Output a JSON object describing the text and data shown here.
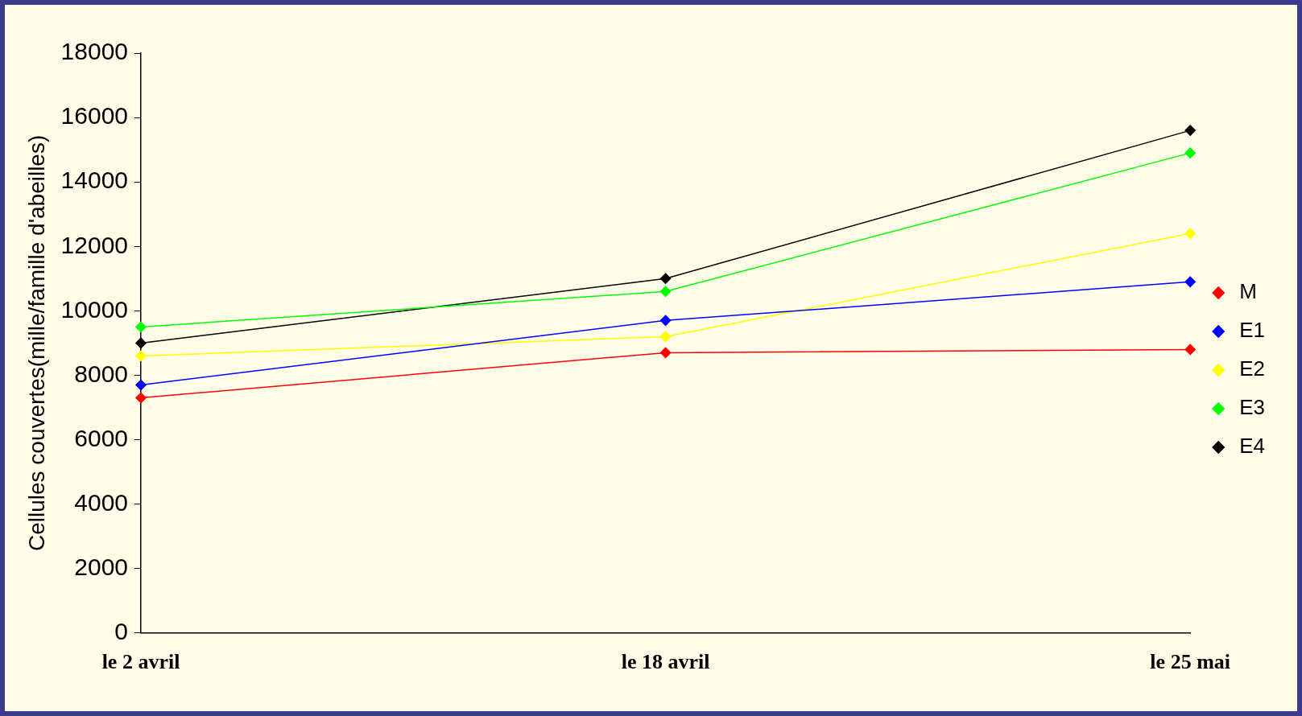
{
  "chart_data": {
    "type": "line",
    "ylabel": "Cellules couvertes(mille/famille d'abeilles)",
    "categories": [
      "le 2 avril",
      "le 18 avril",
      "le 25 mai"
    ],
    "series": [
      {
        "name": "M",
        "color": "#ff0000",
        "values": [
          7300,
          8700,
          8800
        ]
      },
      {
        "name": "E1",
        "color": "#0000ff",
        "values": [
          7700,
          9700,
          10900
        ]
      },
      {
        "name": "E2",
        "color": "#ffff00",
        "values": [
          8600,
          9200,
          12400
        ]
      },
      {
        "name": "E3",
        "color": "#00ff00",
        "values": [
          9500,
          10600,
          14900
        ]
      },
      {
        "name": "E4",
        "color": "#000000",
        "values": [
          9000,
          11000,
          15600
        ]
      }
    ],
    "ylim": [
      0,
      18000
    ],
    "yticks": [
      0,
      2000,
      4000,
      6000,
      8000,
      10000,
      12000,
      14000,
      16000,
      18000
    ],
    "grid": false,
    "legend": "right",
    "marker": "diamond",
    "line_style": "solid"
  }
}
